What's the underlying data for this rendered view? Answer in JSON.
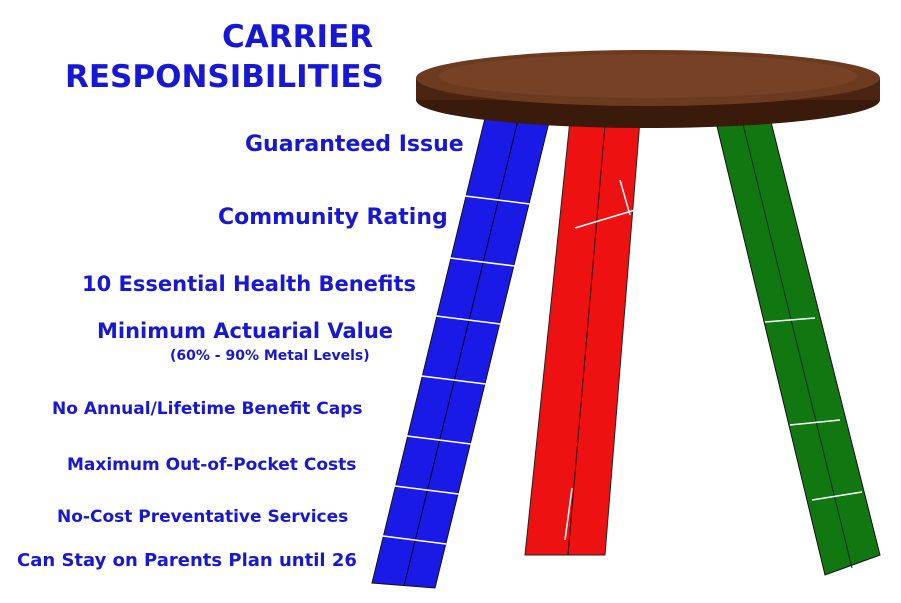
{
  "title_line1": "CARRIER",
  "title_line2": "RESPONSIBILITIES",
  "responsibilities": [
    "Guaranteed Issue",
    "Community Rating",
    "10 Essential Health Benefits",
    "Minimum Actuarial Value",
    "No Annual/Lifetime Benefit Caps",
    "Maximum Out-of-Pocket Costs",
    "No-Cost Preventative Services",
    "Can Stay on Parents Plan until 26"
  ],
  "actuarial_note": "(60% - 90% Metal Levels)",
  "colors": {
    "text": "#1717d6",
    "seat": "#5a2e17",
    "leg_blue": "#1a1ae6",
    "leg_red": "#ee1111",
    "leg_green": "#117711"
  }
}
